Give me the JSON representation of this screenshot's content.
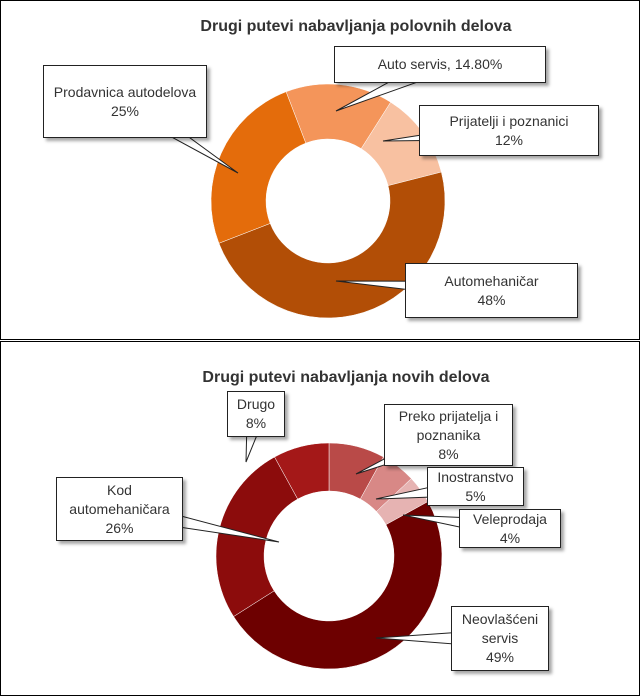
{
  "chart_data": [
    {
      "type": "donut",
      "title": "Drugi putevi nabavljanja  polovnih delova",
      "categories": [
        "Auto servis,",
        "Prijatelji i poznanici",
        "Automehaničar",
        "Prodavnica autodelova"
      ],
      "values": [
        14.8,
        12,
        48,
        25
      ],
      "value_labels": [
        "14.80%",
        "12%",
        "48%",
        "25%"
      ],
      "label_layout": [
        "inline",
        "stacked",
        "stacked",
        "stacked"
      ],
      "colors": [
        "#f4955a",
        "#f8c1a1",
        "#b24e06",
        "#e46c0b"
      ]
    },
    {
      "type": "donut",
      "title": "Drugi putevi nabavljanja  novih delova",
      "categories": [
        "Preko prijatelja i poznanika",
        "Inostranstvo",
        "Veleprodaja",
        "Neovlašćeni servis",
        "Kod automehaničara",
        "Drugo"
      ],
      "values": [
        8,
        5,
        4,
        49,
        26,
        8
      ],
      "value_labels": [
        "8%",
        "5%",
        "4%",
        "49%",
        "26%",
        "8%"
      ],
      "label_layout": [
        "stacked",
        "stacked",
        "stacked",
        "stacked",
        "stacked",
        "stacked"
      ],
      "colors": [
        "#b94a48",
        "#d88886",
        "#e6b3b2",
        "#6d0000",
        "#8c0c0c",
        "#a41818"
      ]
    }
  ]
}
